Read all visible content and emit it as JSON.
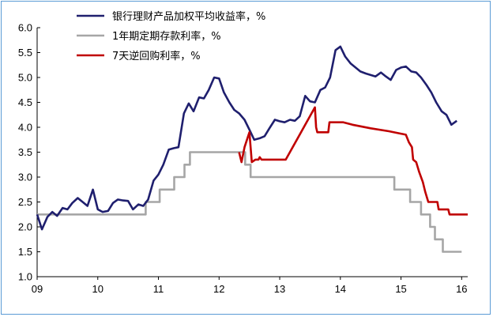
{
  "chart_data": {
    "type": "line",
    "title": "",
    "xlabel": "",
    "ylabel": "",
    "ylim": [
      1.0,
      6.0
    ],
    "xlim": [
      2009.0,
      2016.1
    ],
    "y_ticks": [
      "6.0",
      "5.5",
      "5.0",
      "4.5",
      "4.0",
      "3.5",
      "3.0",
      "2.5",
      "2.0",
      "1.5",
      "1.0"
    ],
    "x_ticks": [
      {
        "x": 2009,
        "label": "09"
      },
      {
        "x": 2010,
        "label": "10"
      },
      {
        "x": 2011,
        "label": "11"
      },
      {
        "x": 2012,
        "label": "12"
      },
      {
        "x": 2013,
        "label": "13"
      },
      {
        "x": 2014,
        "label": "14"
      },
      {
        "x": 2015,
        "label": "15"
      },
      {
        "x": 2016,
        "label": "16"
      }
    ],
    "legend_position": "top-left",
    "grid": false,
    "series": [
      {
        "name": "银行理财产品加权平均收益率，%",
        "color": "#1f1f6e",
        "points": [
          [
            2009.0,
            2.25
          ],
          [
            2009.08,
            1.95
          ],
          [
            2009.17,
            2.2
          ],
          [
            2009.25,
            2.3
          ],
          [
            2009.33,
            2.22
          ],
          [
            2009.42,
            2.38
          ],
          [
            2009.5,
            2.35
          ],
          [
            2009.58,
            2.48
          ],
          [
            2009.67,
            2.58
          ],
          [
            2009.75,
            2.5
          ],
          [
            2009.83,
            2.42
          ],
          [
            2009.92,
            2.75
          ],
          [
            2010.0,
            2.35
          ],
          [
            2010.08,
            2.3
          ],
          [
            2010.17,
            2.32
          ],
          [
            2010.25,
            2.48
          ],
          [
            2010.33,
            2.55
          ],
          [
            2010.42,
            2.53
          ],
          [
            2010.5,
            2.52
          ],
          [
            2010.58,
            2.35
          ],
          [
            2010.67,
            2.45
          ],
          [
            2010.75,
            2.42
          ],
          [
            2010.83,
            2.55
          ],
          [
            2010.92,
            2.93
          ],
          [
            2011.0,
            3.05
          ],
          [
            2011.08,
            3.25
          ],
          [
            2011.17,
            3.55
          ],
          [
            2011.25,
            3.58
          ],
          [
            2011.33,
            3.6
          ],
          [
            2011.42,
            4.28
          ],
          [
            2011.5,
            4.48
          ],
          [
            2011.58,
            4.32
          ],
          [
            2011.67,
            4.6
          ],
          [
            2011.75,
            4.58
          ],
          [
            2011.83,
            4.75
          ],
          [
            2011.92,
            5.0
          ],
          [
            2012.0,
            4.98
          ],
          [
            2012.08,
            4.7
          ],
          [
            2012.17,
            4.5
          ],
          [
            2012.25,
            4.35
          ],
          [
            2012.33,
            4.28
          ],
          [
            2012.42,
            4.15
          ],
          [
            2012.5,
            3.95
          ],
          [
            2012.58,
            3.75
          ],
          [
            2012.67,
            3.78
          ],
          [
            2012.75,
            3.82
          ],
          [
            2012.83,
            3.98
          ],
          [
            2012.92,
            4.15
          ],
          [
            2013.0,
            4.12
          ],
          [
            2013.08,
            4.1
          ],
          [
            2013.17,
            4.15
          ],
          [
            2013.25,
            4.13
          ],
          [
            2013.33,
            4.22
          ],
          [
            2013.42,
            4.63
          ],
          [
            2013.5,
            4.52
          ],
          [
            2013.58,
            4.5
          ],
          [
            2013.67,
            4.75
          ],
          [
            2013.75,
            4.8
          ],
          [
            2013.83,
            5.0
          ],
          [
            2013.92,
            5.55
          ],
          [
            2014.0,
            5.62
          ],
          [
            2014.08,
            5.42
          ],
          [
            2014.17,
            5.28
          ],
          [
            2014.25,
            5.2
          ],
          [
            2014.33,
            5.12
          ],
          [
            2014.42,
            5.08
          ],
          [
            2014.5,
            5.05
          ],
          [
            2014.58,
            5.02
          ],
          [
            2014.67,
            5.1
          ],
          [
            2014.75,
            5.02
          ],
          [
            2014.83,
            4.95
          ],
          [
            2014.92,
            5.15
          ],
          [
            2015.0,
            5.2
          ],
          [
            2015.08,
            5.22
          ],
          [
            2015.17,
            5.12
          ],
          [
            2015.25,
            5.1
          ],
          [
            2015.33,
            5.0
          ],
          [
            2015.42,
            4.85
          ],
          [
            2015.5,
            4.7
          ],
          [
            2015.58,
            4.5
          ],
          [
            2015.67,
            4.32
          ],
          [
            2015.75,
            4.25
          ],
          [
            2015.83,
            4.05
          ],
          [
            2015.92,
            4.13
          ]
        ]
      },
      {
        "name": "1年期定期存款利率，%",
        "color": "#a6a6a6",
        "points": [
          [
            2009.0,
            2.25
          ],
          [
            2010.79,
            2.25
          ],
          [
            2010.79,
            2.5
          ],
          [
            2011.02,
            2.5
          ],
          [
            2011.02,
            2.75
          ],
          [
            2011.26,
            2.75
          ],
          [
            2011.26,
            3.0
          ],
          [
            2011.43,
            3.0
          ],
          [
            2011.43,
            3.25
          ],
          [
            2011.52,
            3.25
          ],
          [
            2011.52,
            3.5
          ],
          [
            2012.43,
            3.5
          ],
          [
            2012.43,
            3.25
          ],
          [
            2012.52,
            3.25
          ],
          [
            2012.52,
            3.0
          ],
          [
            2014.89,
            3.0
          ],
          [
            2014.89,
            2.75
          ],
          [
            2015.15,
            2.75
          ],
          [
            2015.15,
            2.5
          ],
          [
            2015.33,
            2.5
          ],
          [
            2015.33,
            2.25
          ],
          [
            2015.48,
            2.25
          ],
          [
            2015.48,
            2.0
          ],
          [
            2015.56,
            2.0
          ],
          [
            2015.56,
            1.75
          ],
          [
            2015.69,
            1.75
          ],
          [
            2015.69,
            1.5
          ],
          [
            2016.0,
            1.5
          ]
        ]
      },
      {
        "name": "7天逆回购利率，%",
        "color": "#c00000",
        "points": [
          [
            2012.33,
            3.5
          ],
          [
            2012.37,
            3.3
          ],
          [
            2012.42,
            3.6
          ],
          [
            2012.5,
            3.9
          ],
          [
            2012.54,
            3.3
          ],
          [
            2012.6,
            3.35
          ],
          [
            2012.65,
            3.35
          ],
          [
            2012.67,
            3.4
          ],
          [
            2012.7,
            3.35
          ],
          [
            2013.1,
            3.35
          ],
          [
            2013.58,
            4.4
          ],
          [
            2013.6,
            4.0
          ],
          [
            2013.62,
            3.9
          ],
          [
            2013.8,
            3.9
          ],
          [
            2013.82,
            4.1
          ],
          [
            2014.05,
            4.1
          ],
          [
            2014.2,
            4.05
          ],
          [
            2014.5,
            3.98
          ],
          [
            2014.8,
            3.92
          ],
          [
            2015.08,
            3.85
          ],
          [
            2015.13,
            3.7
          ],
          [
            2015.18,
            3.6
          ],
          [
            2015.2,
            3.35
          ],
          [
            2015.25,
            3.3
          ],
          [
            2015.3,
            3.1
          ],
          [
            2015.36,
            2.9
          ],
          [
            2015.4,
            2.7
          ],
          [
            2015.45,
            2.5
          ],
          [
            2015.6,
            2.5
          ],
          [
            2015.62,
            2.35
          ],
          [
            2015.78,
            2.35
          ],
          [
            2015.8,
            2.25
          ],
          [
            2016.1,
            2.25
          ]
        ]
      }
    ]
  }
}
